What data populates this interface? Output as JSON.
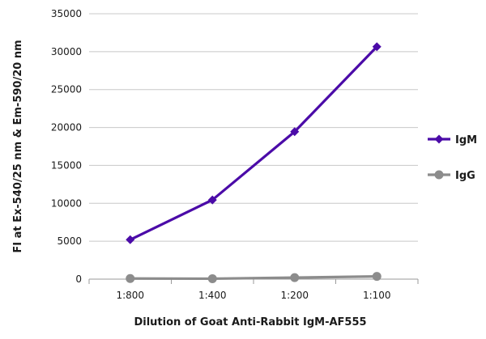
{
  "chart_data": {
    "type": "line",
    "title": "",
    "xlabel": "Dilution of Goat Anti-Rabbit IgM-AF555",
    "ylabel": "FI at Ex-540/25 nm & Em-590/20 nm",
    "categories": [
      "1:800",
      "1:400",
      "1:200",
      "1:100"
    ],
    "ylim": [
      0,
      35000
    ],
    "yticks": [
      0,
      5000,
      10000,
      15000,
      20000,
      25000,
      30000,
      35000
    ],
    "grid": "horizontal",
    "legend_position": "right",
    "series": [
      {
        "name": "IgM",
        "color": "#4B0BA8",
        "marker": "diamond",
        "values": [
          5200,
          10450,
          19450,
          30650
        ]
      },
      {
        "name": "IgG",
        "color": "#8C8C8C",
        "marker": "circle",
        "values": [
          80,
          60,
          200,
          360
        ]
      }
    ]
  }
}
